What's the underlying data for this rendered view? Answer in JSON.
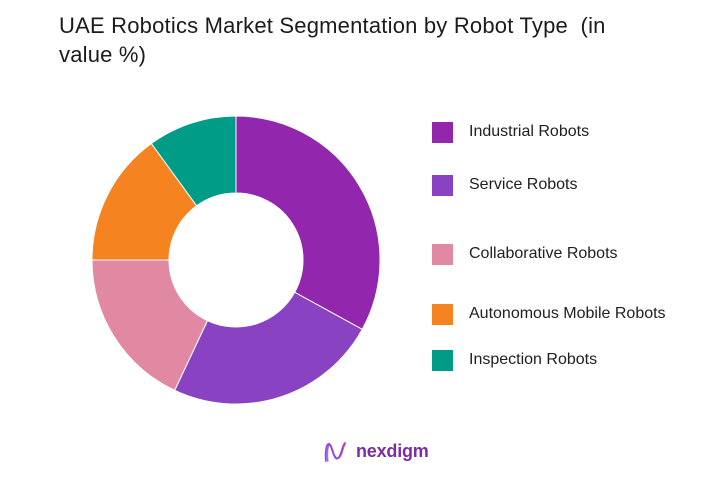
{
  "title": {
    "text": "UAE Robotics Market Segmentation by Robot Type  (in value %)"
  },
  "chart_data": {
    "type": "pie",
    "variant": "donut",
    "title": "UAE Robotics Market Segmentation by Robot Type (in value %)",
    "value_unit": "% of market value",
    "direction": "clockwise",
    "start_angle_deg": 0,
    "inner_radius_ratio": 0.465,
    "legend_position": "right",
    "data_labels_shown": false,
    "categories": [
      "Industrial Robots",
      "Service Robots",
      "Collaborative Robots",
      "Autonomous Mobile Robots",
      "Inspection Robots"
    ],
    "values": [
      33,
      24,
      18,
      15,
      10
    ],
    "colors": [
      "#9227AE",
      "#8842C2",
      "#E189A2",
      "#F5831F",
      "#019C87"
    ]
  },
  "footer": {
    "brand_text": "nexdigm",
    "brand_color": "#7E2D9E",
    "icon": "nexdigm-n-wave-icon"
  }
}
